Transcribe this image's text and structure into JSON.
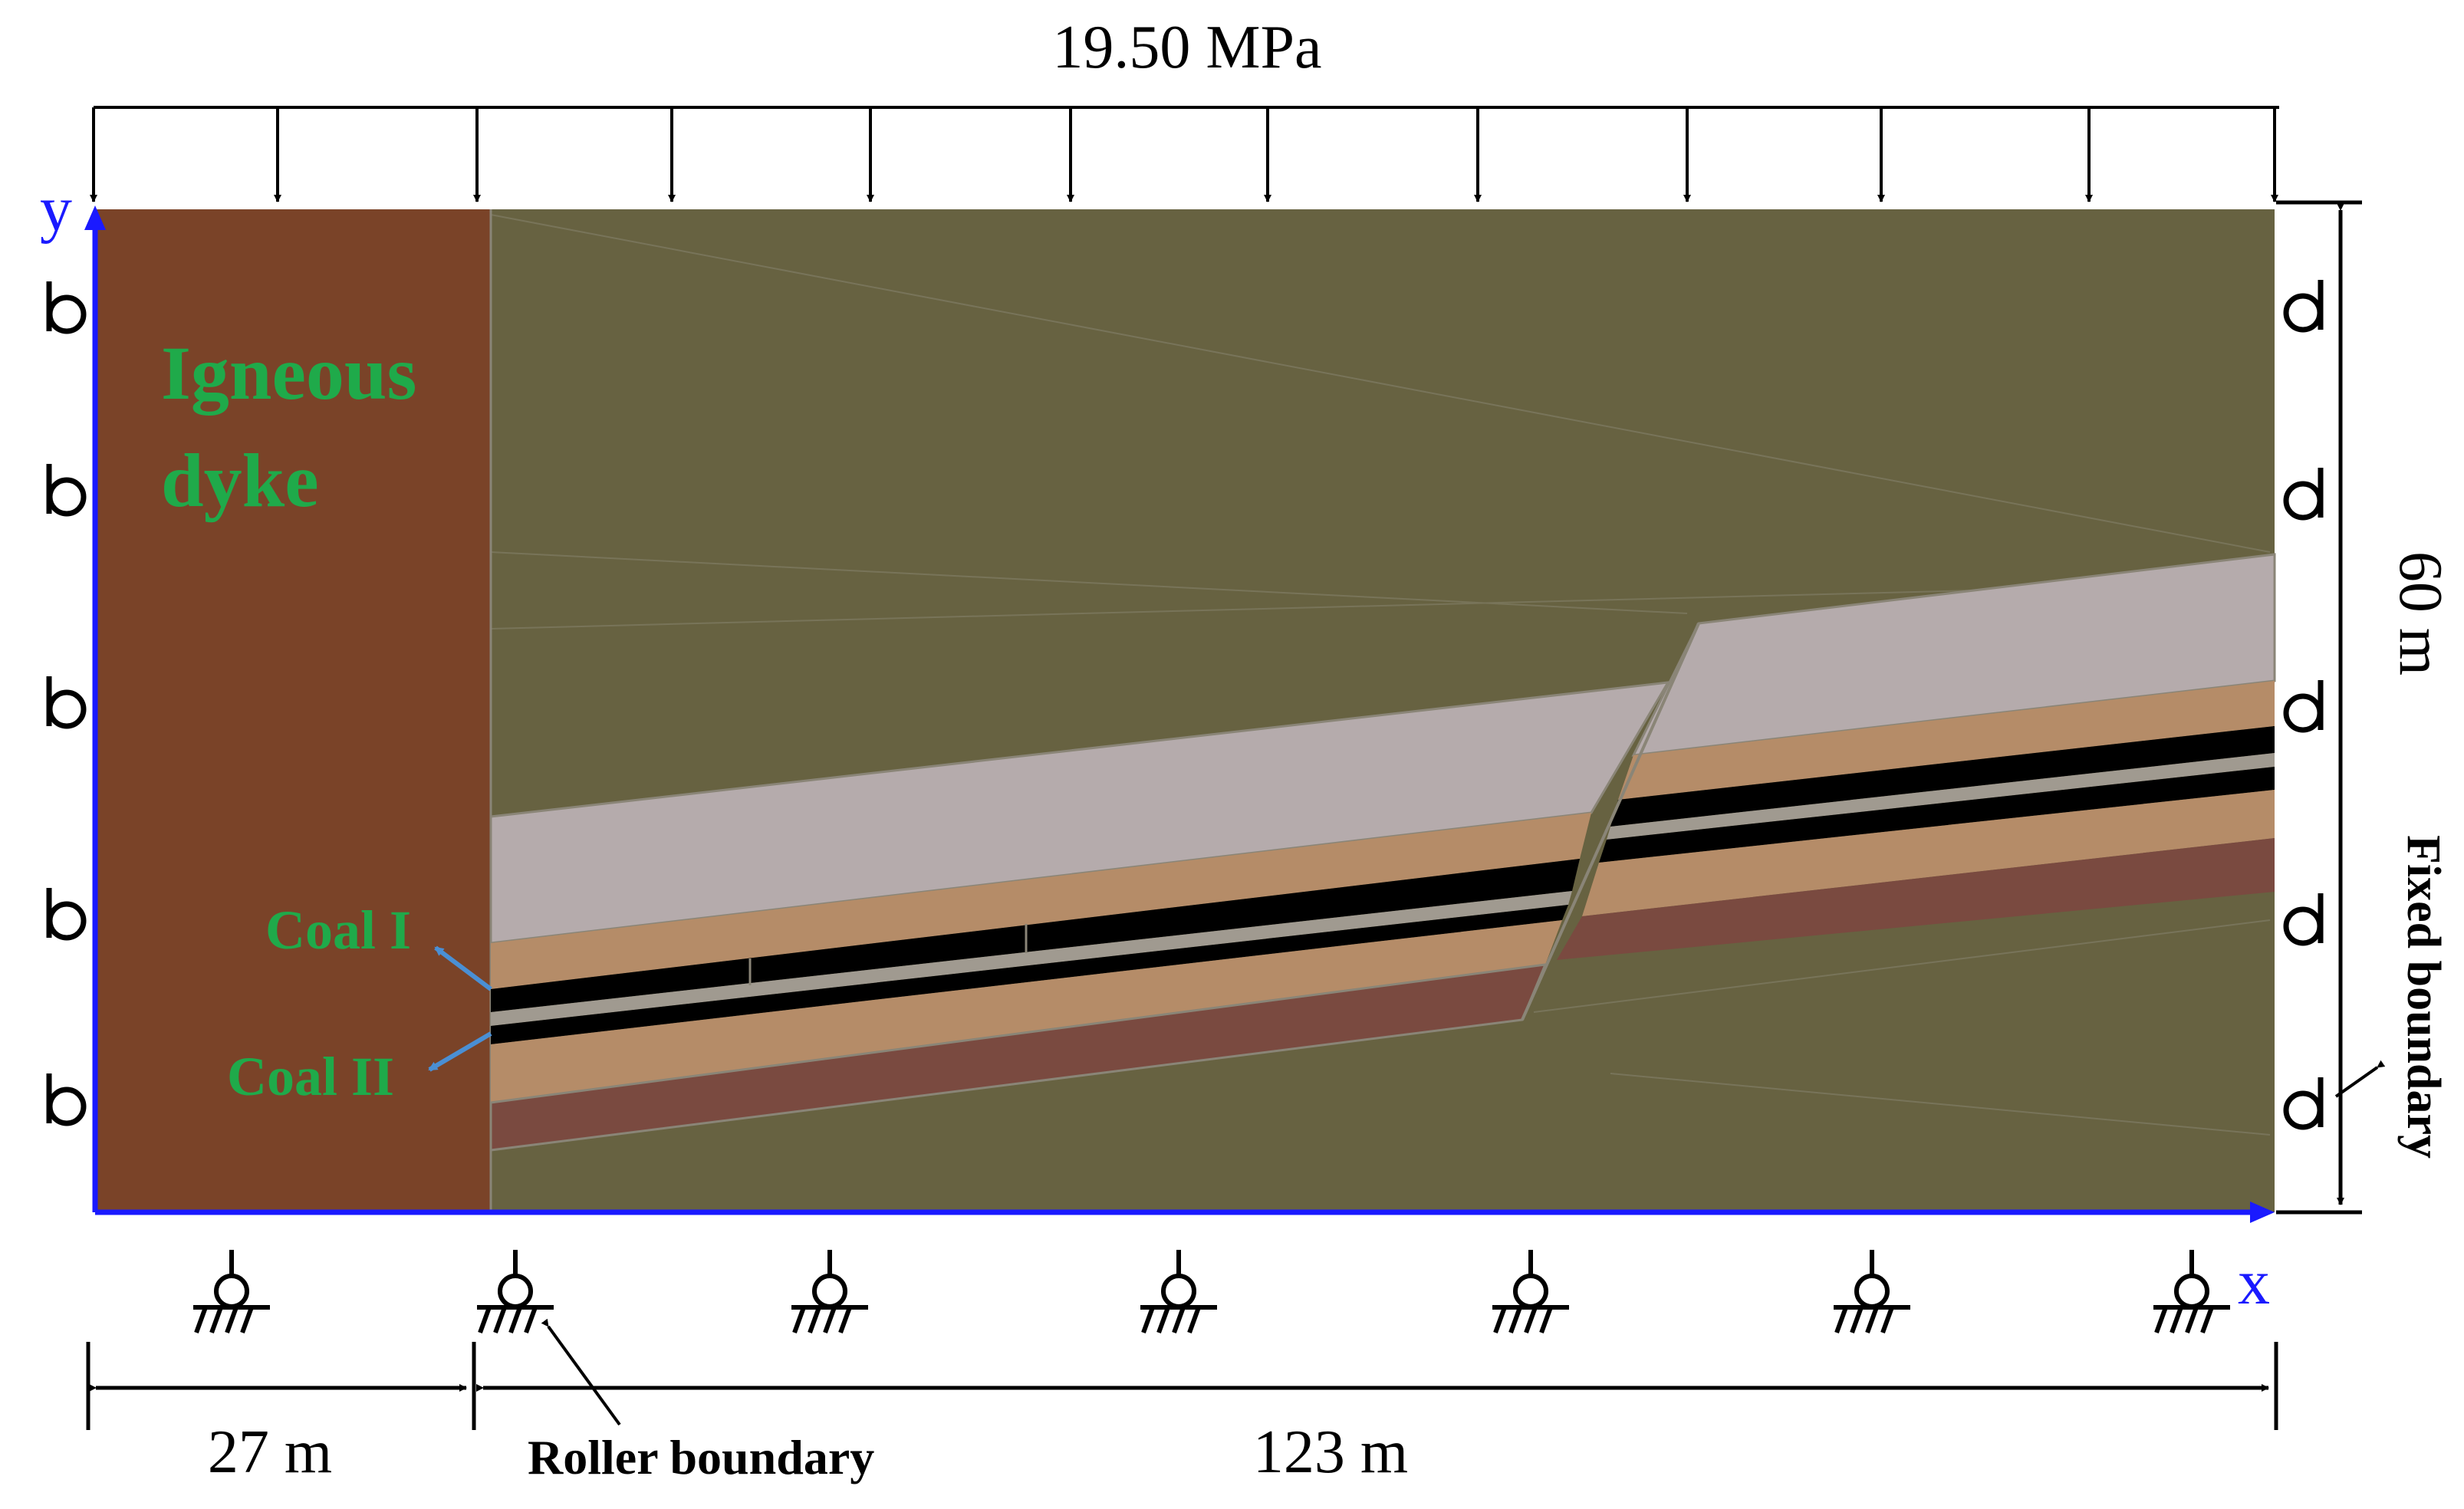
{
  "load": {
    "label": "19.50 MPa"
  },
  "axes": {
    "x_label": "x",
    "y_label": "y"
  },
  "labels": {
    "igneous_line1": "Igneous",
    "igneous_line2": "dyke",
    "coal_1": "Coal I",
    "coal_2": "Coal II"
  },
  "dimensions": {
    "left_width": "27 m",
    "right_width": "123 m",
    "height": "60 m"
  },
  "boundaries": {
    "roller": "Roller boundary",
    "fixed": "Fixed boundary"
  },
  "colors": {
    "background": "#ffffff",
    "dyke": "#7a4328",
    "host_rock": "#676241",
    "light_gray_layer": "#b5abac",
    "tan_layer": "#b58c68",
    "dark_red_layer": "#7a4a40",
    "coal": "#000000",
    "parting": "#a09a90",
    "axis": "#1a1aff",
    "label_green": "#1faa4a",
    "pointer_blue": "#4a8fd4",
    "ink": "#000000"
  }
}
